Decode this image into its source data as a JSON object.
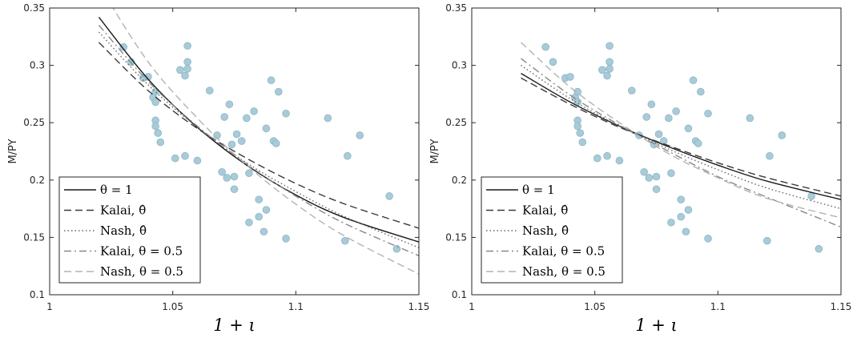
{
  "chart_data": [
    {
      "type": "line",
      "xlabel": "1 + ι",
      "ylabel": "M/PY",
      "xlim": [
        1,
        1.15
      ],
      "ylim": [
        0.1,
        0.35
      ],
      "xticks": [
        1,
        1.05,
        1.1,
        1.15
      ],
      "xtick_labels": [
        "1",
        "1.05",
        "1.1",
        "1.15"
      ],
      "yticks": [
        0.1,
        0.15,
        0.2,
        0.25,
        0.3,
        0.35
      ],
      "ytick_labels": [
        "0.1",
        "0.15",
        "0.2",
        "0.25",
        "0.3",
        "0.35"
      ],
      "legend_position": "bottom-left",
      "scatter": {
        "color": "#a9cbd8",
        "points": [
          [
            1.03,
            0.316
          ],
          [
            1.033,
            0.303
          ],
          [
            1.038,
            0.289
          ],
          [
            1.04,
            0.29
          ],
          [
            1.042,
            0.272
          ],
          [
            1.043,
            0.277
          ],
          [
            1.043,
            0.268
          ],
          [
            1.043,
            0.252
          ],
          [
            1.043,
            0.247
          ],
          [
            1.044,
            0.241
          ],
          [
            1.045,
            0.233
          ],
          [
            1.051,
            0.219
          ],
          [
            1.053,
            0.296
          ],
          [
            1.055,
            0.291
          ],
          [
            1.055,
            0.221
          ],
          [
            1.056,
            0.317
          ],
          [
            1.056,
            0.303
          ],
          [
            1.056,
            0.297
          ],
          [
            1.06,
            0.217
          ],
          [
            1.065,
            0.278
          ],
          [
            1.068,
            0.239
          ],
          [
            1.07,
            0.207
          ],
          [
            1.071,
            0.255
          ],
          [
            1.072,
            0.202
          ],
          [
            1.073,
            0.266
          ],
          [
            1.074,
            0.231
          ],
          [
            1.075,
            0.203
          ],
          [
            1.075,
            0.192
          ],
          [
            1.076,
            0.24
          ],
          [
            1.078,
            0.234
          ],
          [
            1.08,
            0.254
          ],
          [
            1.081,
            0.206
          ],
          [
            1.081,
            0.163
          ],
          [
            1.083,
            0.26
          ],
          [
            1.085,
            0.168
          ],
          [
            1.085,
            0.183
          ],
          [
            1.087,
            0.155
          ],
          [
            1.088,
            0.174
          ],
          [
            1.088,
            0.245
          ],
          [
            1.09,
            0.287
          ],
          [
            1.091,
            0.234
          ],
          [
            1.092,
            0.232
          ],
          [
            1.093,
            0.277
          ],
          [
            1.096,
            0.149
          ],
          [
            1.096,
            0.258
          ],
          [
            1.113,
            0.254
          ],
          [
            1.12,
            0.147
          ],
          [
            1.121,
            0.221
          ],
          [
            1.126,
            0.239
          ],
          [
            1.138,
            0.186
          ],
          [
            1.141,
            0.14
          ]
        ]
      },
      "series": [
        {
          "name": "θ = 1",
          "color": "#1a1a1a",
          "dash": "solid",
          "x": [
            1.02,
            1.04,
            1.06,
            1.08,
            1.1,
            1.12,
            1.15
          ],
          "y": [
            0.342,
            0.288,
            0.246,
            0.213,
            0.187,
            0.167,
            0.146
          ]
        },
        {
          "name": "Kalai, θ̂",
          "color": "#3a3a3a",
          "dash": "dashed",
          "x": [
            1.02,
            1.04,
            1.06,
            1.08,
            1.1,
            1.12,
            1.15
          ],
          "y": [
            0.32,
            0.278,
            0.245,
            0.219,
            0.197,
            0.179,
            0.158
          ]
        },
        {
          "name": "Nash, θ̂",
          "color": "#666666",
          "dash": "dotted",
          "x": [
            1.02,
            1.04,
            1.06,
            1.08,
            1.1,
            1.12,
            1.15
          ],
          "y": [
            0.329,
            0.283,
            0.246,
            0.215,
            0.19,
            0.168,
            0.141
          ]
        },
        {
          "name": "Kalai, θ = 0.5",
          "color": "#888888",
          "dash": "dashdot",
          "x": [
            1.02,
            1.04,
            1.06,
            1.08,
            1.1,
            1.12,
            1.15
          ],
          "y": [
            0.335,
            0.286,
            0.247,
            0.214,
            0.186,
            0.162,
            0.134
          ]
        },
        {
          "name": "Nash, θ = 0.5",
          "color": "#b3b3b3",
          "dash": "dashed",
          "x": [
            1.02,
            1.04,
            1.06,
            1.08,
            1.1,
            1.12,
            1.15
          ],
          "y": [
            0.37,
            0.303,
            0.254,
            0.213,
            0.179,
            0.151,
            0.118
          ]
        }
      ]
    },
    {
      "type": "line",
      "xlabel": "1 + ι",
      "ylabel": "M/PY",
      "xlim": [
        1,
        1.15
      ],
      "ylim": [
        0.1,
        0.35
      ],
      "xticks": [
        1,
        1.05,
        1.1,
        1.15
      ],
      "xtick_labels": [
        "1",
        "1.05",
        "1.1",
        "1.15"
      ],
      "yticks": [
        0.1,
        0.15,
        0.2,
        0.25,
        0.3,
        0.35
      ],
      "ytick_labels": [
        "0.1",
        "0.15",
        "0.2",
        "0.25",
        "0.3",
        "0.35"
      ],
      "legend_position": "bottom-left",
      "scatter": {
        "color": "#a9cbd8",
        "points": [
          [
            1.03,
            0.316
          ],
          [
            1.033,
            0.303
          ],
          [
            1.038,
            0.289
          ],
          [
            1.04,
            0.29
          ],
          [
            1.042,
            0.272
          ],
          [
            1.043,
            0.277
          ],
          [
            1.043,
            0.268
          ],
          [
            1.043,
            0.252
          ],
          [
            1.043,
            0.247
          ],
          [
            1.044,
            0.241
          ],
          [
            1.045,
            0.233
          ],
          [
            1.051,
            0.219
          ],
          [
            1.053,
            0.296
          ],
          [
            1.055,
            0.291
          ],
          [
            1.055,
            0.221
          ],
          [
            1.056,
            0.317
          ],
          [
            1.056,
            0.303
          ],
          [
            1.056,
            0.297
          ],
          [
            1.06,
            0.217
          ],
          [
            1.065,
            0.278
          ],
          [
            1.068,
            0.239
          ],
          [
            1.07,
            0.207
          ],
          [
            1.071,
            0.255
          ],
          [
            1.072,
            0.202
          ],
          [
            1.073,
            0.266
          ],
          [
            1.074,
            0.231
          ],
          [
            1.075,
            0.203
          ],
          [
            1.075,
            0.192
          ],
          [
            1.076,
            0.24
          ],
          [
            1.078,
            0.234
          ],
          [
            1.08,
            0.254
          ],
          [
            1.081,
            0.206
          ],
          [
            1.081,
            0.163
          ],
          [
            1.083,
            0.26
          ],
          [
            1.085,
            0.168
          ],
          [
            1.085,
            0.183
          ],
          [
            1.087,
            0.155
          ],
          [
            1.088,
            0.174
          ],
          [
            1.088,
            0.245
          ],
          [
            1.09,
            0.287
          ],
          [
            1.091,
            0.234
          ],
          [
            1.092,
            0.232
          ],
          [
            1.093,
            0.277
          ],
          [
            1.096,
            0.149
          ],
          [
            1.096,
            0.258
          ],
          [
            1.113,
            0.254
          ],
          [
            1.12,
            0.147
          ],
          [
            1.121,
            0.221
          ],
          [
            1.126,
            0.239
          ],
          [
            1.138,
            0.186
          ],
          [
            1.141,
            0.14
          ]
        ]
      },
      "series": [
        {
          "name": "θ = 1",
          "color": "#1a1a1a",
          "dash": "solid",
          "x": [
            1.02,
            1.04,
            1.06,
            1.08,
            1.1,
            1.12,
            1.15
          ],
          "y": [
            0.293,
            0.268,
            0.247,
            0.229,
            0.213,
            0.199,
            0.183
          ]
        },
        {
          "name": "Kalai, θ̂",
          "color": "#3a3a3a",
          "dash": "dashed",
          "x": [
            1.02,
            1.04,
            1.06,
            1.08,
            1.1,
            1.12,
            1.15
          ],
          "y": [
            0.289,
            0.266,
            0.246,
            0.23,
            0.215,
            0.202,
            0.186
          ]
        },
        {
          "name": "Nash, θ̂",
          "color": "#666666",
          "dash": "dotted",
          "x": [
            1.02,
            1.04,
            1.06,
            1.08,
            1.1,
            1.12,
            1.15
          ],
          "y": [
            0.3,
            0.271,
            0.247,
            0.227,
            0.209,
            0.193,
            0.175
          ]
        },
        {
          "name": "Kalai, θ = 0.5",
          "color": "#888888",
          "dash": "dashdot",
          "x": [
            1.02,
            1.04,
            1.06,
            1.08,
            1.1,
            1.12,
            1.15
          ],
          "y": [
            0.306,
            0.274,
            0.248,
            0.225,
            0.203,
            0.185,
            0.159
          ]
        },
        {
          "name": "Nash, θ = 0.5",
          "color": "#b3b3b3",
          "dash": "dashed",
          "x": [
            1.02,
            1.04,
            1.06,
            1.08,
            1.1,
            1.12,
            1.15
          ],
          "y": [
            0.32,
            0.281,
            0.25,
            0.223,
            0.202,
            0.184,
            0.167
          ]
        }
      ]
    }
  ]
}
